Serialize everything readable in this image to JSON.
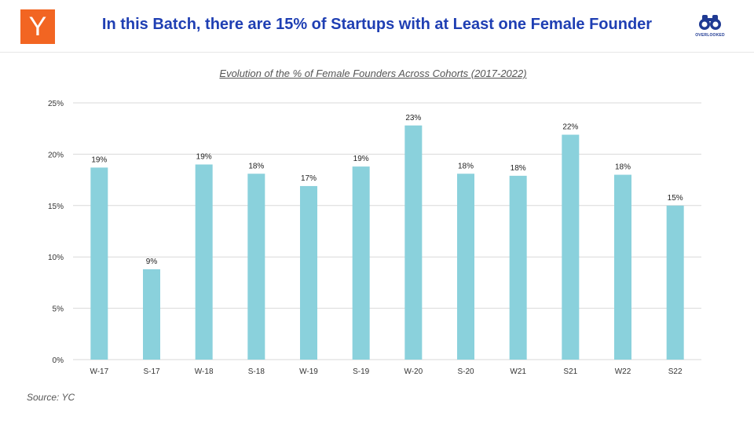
{
  "header": {
    "logo_letter": "Y",
    "title": "In this Batch, there are 15% of Startups with at Least one Female Founder",
    "brand_name": "OVERLOOKED",
    "brand_icon": "binoculars-icon"
  },
  "colors": {
    "bar": "#8ad1dc",
    "title": "#1f3fb3",
    "logo": "#f26522",
    "grid": "#d9d9d9"
  },
  "chart_data": {
    "type": "bar",
    "title": "Evolution of the % of Female Founders Across Cohorts (2017-2022)",
    "categories": [
      "W-17",
      "S-17",
      "W-18",
      "S-18",
      "W-19",
      "S-19",
      "W-20",
      "S-20",
      "W21",
      "S21",
      "W22",
      "S22"
    ],
    "values": [
      18.7,
      8.8,
      19.0,
      18.1,
      16.9,
      18.8,
      22.8,
      18.1,
      17.9,
      21.9,
      18.0,
      15.0
    ],
    "data_labels": [
      "19%",
      "9%",
      "19%",
      "18%",
      "17%",
      "19%",
      "23%",
      "18%",
      "18%",
      "22%",
      "18%",
      "15%"
    ],
    "ylim": [
      0,
      25
    ],
    "yticks": [
      0,
      5,
      10,
      15,
      20,
      25
    ],
    "ytick_labels": [
      "0%",
      "5%",
      "10%",
      "15%",
      "20%",
      "25%"
    ],
    "grid": true,
    "legend": "none"
  },
  "footer": {
    "source": "Source: YC"
  }
}
